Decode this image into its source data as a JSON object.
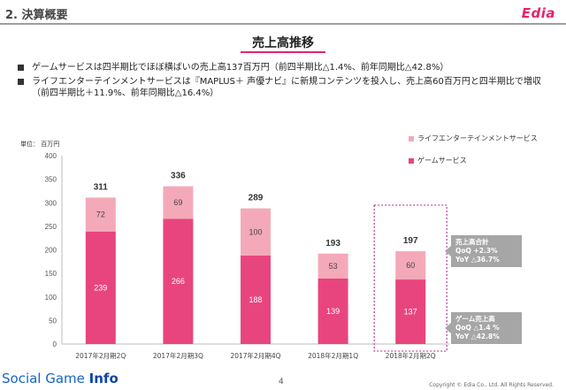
{
  "header": {
    "section_title": "2. 決算概要",
    "logo_text": "Edia"
  },
  "slide_title": "売上高推移",
  "bullets": [
    "ゲームサービスは四半期比でほぼ横ばいの売上高137百万円（前四半期比△1.4%、前年同期比△42.8%）",
    "ライフエンターテインメントサービスは『MAPLUS＋ 声優ナビ』に新規コンテンツを投入し、売上高60百万円と四半期比で増収（前四半期比＋11.9%、前年同期比△16.4%）"
  ],
  "unit_label": "単位： 百万円",
  "colors": {
    "game": "#e8457e",
    "life": "#f4a9b8",
    "highlight": "#c44aa0",
    "callout": "#a6a6a6"
  },
  "callouts": {
    "total": {
      "title": "売上高合計",
      "qoq": "QoQ +2.3%",
      "yoy": "YoY △36.7%"
    },
    "game": {
      "title": "ゲーム売上高",
      "qoq": "QoQ △1.4 %",
      "yoy": "YoY △42.8%"
    }
  },
  "chart_data": {
    "type": "bar",
    "stacked": true,
    "categories": [
      "2017年2月期2Q",
      "2017年2月期3Q",
      "2017年2月期4Q",
      "2018年2月期1Q",
      "2018年2月期2Q"
    ],
    "series": [
      {
        "name": "ゲームサービス",
        "values": [
          239,
          266,
          188,
          139,
          137
        ]
      },
      {
        "name": "ライフエンターテインメントサービス",
        "values": [
          72,
          69,
          100,
          53,
          60
        ]
      }
    ],
    "totals": [
      311,
      336,
      289,
      193,
      197
    ],
    "yticks": [
      0,
      50,
      100,
      150,
      200,
      250,
      300,
      350,
      400
    ],
    "ylim": [
      0,
      400
    ],
    "grid": false,
    "legend_position": "top-right",
    "highlighted_category": "2018年2月期2Q"
  },
  "footer": {
    "brand_prefix": "Social Game ",
    "brand_suffix": "Info",
    "page_number": "4",
    "copyright": "Copyright © Edia Co., Ltd. All Rights Reserved."
  }
}
